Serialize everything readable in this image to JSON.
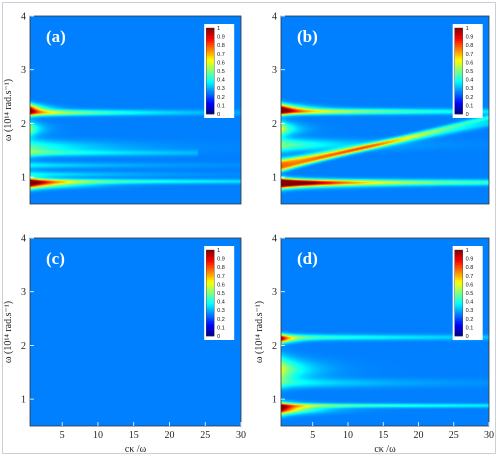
{
  "chart_data": [
    {
      "type": "heatmap",
      "panel_label": "(a)",
      "xlabel": "",
      "ylabel": "ω (10¹⁴ rad.s⁻¹)",
      "xlim": [
        0.5,
        30
      ],
      "ylim": [
        0.5,
        4
      ],
      "xticks": [],
      "yticks": [
        1,
        2,
        3,
        4
      ],
      "colorbar": {
        "ticks": [
          "1",
          "0.9",
          "0.8",
          "0.7",
          "0.6",
          "0.5",
          "0.4",
          "0.3",
          "0.2",
          "0.1",
          "0"
        ],
        "range": [
          0,
          1
        ]
      },
      "bands": [
        {
          "w": 2.27,
          "intensity": 1.0,
          "decay": 1.4,
          "width": 0.07
        },
        {
          "w": 2.2,
          "intensity": 0.55,
          "decay": 12,
          "width": 0.05
        },
        {
          "w": 0.88,
          "intensity": 1.0,
          "decay": 4,
          "width": 0.07
        },
        {
          "w": 0.92,
          "intensity": 0.35,
          "decay": 30,
          "width": 0.04
        },
        {
          "w": 1.55,
          "intensity": 0.3,
          "decay": 8,
          "width": 0.12
        },
        {
          "w": 1.45,
          "intensity": 0.22,
          "decay": 24,
          "width": 0.05,
          "x_end": 24
        },
        {
          "w": 1.22,
          "intensity": 0.2,
          "decay": 14,
          "width": 0.05
        },
        {
          "w": 1.05,
          "intensity": 0.22,
          "decay": 12,
          "width": 0.05
        },
        {
          "w": 1.9,
          "intensity": 0.55,
          "decay": 1.2,
          "width": 0.1
        }
      ]
    },
    {
      "type": "heatmap",
      "panel_label": "(b)",
      "xlabel": "",
      "ylabel": "",
      "xlim": [
        0.5,
        30
      ],
      "ylim": [
        0.5,
        4
      ],
      "xticks": [],
      "yticks": [
        1,
        2,
        3,
        4
      ],
      "colorbar": {
        "ticks": [
          "1",
          "0.9",
          "0.8",
          "0.7",
          "0.6",
          "0.5",
          "0.4",
          "0.3",
          "0.2",
          "0.1",
          "0"
        ],
        "range": [
          0,
          1
        ]
      },
      "bands": [
        {
          "w": 2.27,
          "intensity": 1.0,
          "decay": 2.2,
          "width": 0.07
        },
        {
          "w": 2.22,
          "intensity": 0.55,
          "decay": 20,
          "width": 0.05
        },
        {
          "w": 0.88,
          "intensity": 1.0,
          "decay": 6,
          "width": 0.07
        },
        {
          "w": 0.9,
          "intensity": 0.55,
          "decay": 30,
          "width": 0.05
        },
        {
          "w": 1.25,
          "intensity": 0.55,
          "decay": 18,
          "width": 0.06,
          "slope": 0.025
        },
        {
          "w": 1.15,
          "intensity": 0.5,
          "decay": 30,
          "width": 0.05,
          "slope": 0.032
        },
        {
          "w": 1.6,
          "intensity": 0.35,
          "decay": 8,
          "width": 0.1
        },
        {
          "w": 1.9,
          "intensity": 0.6,
          "decay": 1.6,
          "width": 0.1
        }
      ]
    },
    {
      "type": "heatmap",
      "panel_label": "(c)",
      "xlabel": "cκ /ω",
      "ylabel": "ω (10¹⁴ rad.s⁻¹)",
      "xlim": [
        0.5,
        30
      ],
      "ylim": [
        0.5,
        4
      ],
      "xticks": [
        5,
        10,
        15,
        20,
        25,
        30
      ],
      "yticks": [
        1,
        2,
        3,
        4
      ],
      "colorbar": {
        "ticks": [
          "1",
          "0.9",
          "0.8",
          "0.7",
          "0.6",
          "0.5",
          "0.4",
          "0.3",
          "0.2",
          "0.1",
          "0"
        ],
        "range": [
          0,
          1
        ]
      },
      "bands": []
    },
    {
      "type": "heatmap",
      "panel_label": "(d)",
      "xlabel": "cκ /ω",
      "ylabel": "ω (10¹⁴ rad.s⁻¹)",
      "xlim": [
        0.5,
        30
      ],
      "ylim": [
        0.5,
        4
      ],
      "xticks": [
        5,
        10,
        15,
        20,
        25,
        30
      ],
      "yticks": [
        1,
        2,
        3,
        4
      ],
      "colorbar": {
        "ticks": [
          "1",
          "0.9",
          "0.8",
          "0.7",
          "0.6",
          "0.5",
          "0.4",
          "0.3",
          "0.2",
          "0.1",
          "0"
        ],
        "range": [
          0,
          1
        ]
      },
      "bands": [
        {
          "w": 2.12,
          "intensity": 0.95,
          "decay": 1.4,
          "width": 0.06
        },
        {
          "w": 2.15,
          "intensity": 0.3,
          "decay": 25,
          "width": 0.05
        },
        {
          "w": 0.82,
          "intensity": 1.0,
          "decay": 3,
          "width": 0.08
        },
        {
          "w": 0.88,
          "intensity": 0.35,
          "decay": 35,
          "width": 0.035
        },
        {
          "w": 1.55,
          "intensity": 0.5,
          "decay": 3,
          "width": 0.18
        },
        {
          "w": 1.3,
          "intensity": 0.22,
          "decay": 14,
          "width": 0.08
        }
      ]
    }
  ]
}
